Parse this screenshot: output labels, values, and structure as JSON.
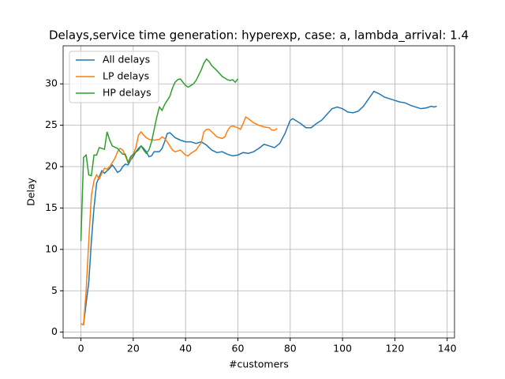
{
  "chart_data": {
    "type": "line",
    "title": "Delays,service time generation: hyperexp, case: a, lambda_arrival: 1.4",
    "xlabel": "#customers",
    "ylabel": "Delay",
    "xlim": [
      -6.8,
      142.8
    ],
    "ylim": [
      -0.7,
      34.6
    ],
    "xticks": [
      0,
      20,
      40,
      60,
      80,
      100,
      120,
      140
    ],
    "yticks": [
      0,
      5,
      10,
      15,
      20,
      25,
      30
    ],
    "grid": true,
    "legend": "upper left",
    "series": [
      {
        "name": "All delays",
        "color": "#1f77b4",
        "x": [
          0,
          1,
          2,
          3,
          4,
          5,
          6,
          7,
          8,
          9,
          10,
          11,
          12,
          13,
          14,
          15,
          16,
          17,
          18,
          19,
          20,
          21,
          22,
          23,
          24,
          25,
          26,
          27,
          28,
          29,
          30,
          31,
          32,
          33,
          34,
          35,
          36,
          38,
          40,
          42,
          44,
          46,
          48,
          50,
          52,
          54,
          56,
          58,
          60,
          62,
          64,
          66,
          68,
          70,
          72,
          74,
          76,
          78,
          80,
          81,
          82,
          84,
          86,
          88,
          90,
          92,
          94,
          96,
          98,
          100,
          102,
          104,
          106,
          108,
          110,
          112,
          114,
          116,
          118,
          120,
          122,
          124,
          126,
          128,
          130,
          132,
          134,
          135,
          136
        ],
        "values": [
          1,
          0.9,
          3.5,
          6,
          11,
          15,
          18,
          18.8,
          19.5,
          19.2,
          19.5,
          19.8,
          20.2,
          19.8,
          19.3,
          19.5,
          20,
          20.3,
          20.2,
          20.8,
          21.2,
          21.8,
          22.2,
          22.5,
          22.2,
          21.8,
          21.2,
          21.3,
          21.8,
          21.8,
          21.8,
          22.2,
          23,
          24,
          24.1,
          23.8,
          23.5,
          23.2,
          23,
          23,
          22.8,
          23,
          22.6,
          22,
          21.7,
          21.8,
          21.5,
          21.3,
          21.4,
          21.7,
          21.6,
          21.8,
          22.2,
          22.7,
          22.5,
          22.3,
          22.8,
          24,
          25.6,
          25.8,
          25.6,
          25.2,
          24.7,
          24.7,
          25.2,
          25.6,
          26.3,
          27,
          27.2,
          27,
          26.6,
          26.5,
          26.7,
          27.3,
          28.2,
          29.1,
          28.8,
          28.4,
          28.2,
          28,
          27.8,
          27.7,
          27.4,
          27.2,
          27,
          27.1,
          27.3,
          27.2,
          27.3
        ]
      },
      {
        "name": "LP delays",
        "color": "#ff7f0e",
        "x": [
          0,
          1,
          2,
          3,
          4,
          5,
          6,
          7,
          8,
          9,
          10,
          11,
          12,
          13,
          14,
          15,
          16,
          17,
          18,
          19,
          20,
          21,
          22,
          23,
          24,
          25,
          26,
          28,
          30,
          31,
          32,
          33,
          34,
          35,
          36,
          38,
          40,
          41,
          42,
          44,
          46,
          47,
          48,
          49,
          50,
          52,
          54,
          55,
          56,
          57,
          58,
          60,
          61,
          62,
          63,
          64,
          66,
          68,
          70,
          72,
          73,
          74,
          75
        ],
        "values": [
          1,
          0.9,
          5,
          11,
          16.5,
          18.3,
          19,
          18.5,
          19.2,
          19.8,
          19.7,
          20,
          20.5,
          21,
          21.8,
          22.2,
          22,
          21.3,
          20.5,
          20.9,
          21.5,
          22.3,
          23.8,
          24.2,
          23.8,
          23.5,
          23.3,
          23.2,
          23.3,
          23.6,
          23.4,
          23,
          22.5,
          22,
          21.8,
          22,
          21.4,
          21.3,
          21.6,
          22,
          22.9,
          24.2,
          24.5,
          24.5,
          24.2,
          23.6,
          23.4,
          23.6,
          24.3,
          24.8,
          24.9,
          24.7,
          24.5,
          25.2,
          26,
          25.8,
          25.3,
          25,
          24.8,
          24.7,
          24.4,
          24.4,
          24.6
        ]
      },
      {
        "name": "HP delays",
        "color": "#2ca02c",
        "x": [
          0,
          1,
          2,
          3,
          4,
          5,
          6,
          7,
          8,
          9,
          10,
          11,
          12,
          14,
          15,
          16,
          17,
          18,
          19,
          20,
          22,
          23,
          24,
          25,
          26,
          27,
          28,
          29,
          30,
          31,
          32,
          33,
          34,
          35,
          36,
          37,
          38,
          39,
          40,
          41,
          42,
          43,
          44,
          46,
          47,
          48,
          49,
          50,
          52,
          54,
          56,
          57,
          58,
          59,
          60
        ],
        "values": [
          11,
          21.1,
          21.4,
          19,
          18.9,
          21.4,
          21.4,
          22.3,
          22.2,
          22.1,
          24.2,
          23.2,
          22.5,
          22.2,
          21.8,
          21.5,
          21.5,
          20.5,
          21.2,
          21.5,
          22,
          22.5,
          22,
          21.6,
          22,
          23,
          24.5,
          26,
          27.2,
          26.8,
          27.5,
          28,
          28.5,
          29.5,
          30.2,
          30.5,
          30.6,
          30.2,
          29.8,
          29.6,
          29.8,
          30,
          30.4,
          31.7,
          32.5,
          33,
          32.7,
          32.2,
          31.6,
          30.9,
          30.5,
          30.4,
          30.5,
          30.2,
          30.6
        ]
      }
    ]
  }
}
